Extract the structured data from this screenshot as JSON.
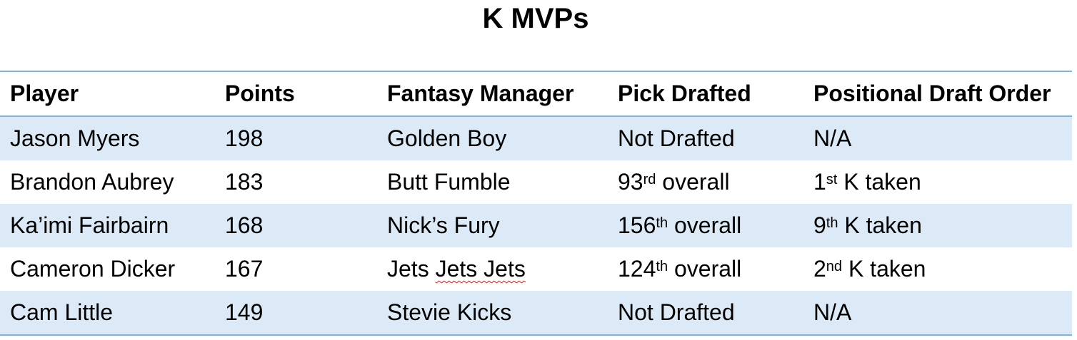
{
  "title": "K MVPs",
  "table": {
    "headers": [
      "Player",
      "Points",
      "Fantasy Manager",
      "Pick Drafted",
      "Positional Draft Order"
    ],
    "rows": [
      {
        "player": "Jason Myers",
        "points": "198",
        "manager_a": "Golden Boy",
        "manager_b": "",
        "pick_num": "Not Drafted",
        "pick_sup": "",
        "pick_rest": "",
        "pos_num": "N/A",
        "pos_sup": "",
        "pos_rest": ""
      },
      {
        "player": "Brandon Aubrey",
        "points": "183",
        "manager_a": "Butt Fumble",
        "manager_b": "",
        "pick_num": "93",
        "pick_sup": "rd",
        "pick_rest": " overall",
        "pos_num": "1",
        "pos_sup": "st",
        "pos_rest": " K taken"
      },
      {
        "player": "Ka’imi Fairbairn",
        "points": "168",
        "manager_a": "Nick’s Fury",
        "manager_b": "",
        "pick_num": "156",
        "pick_sup": "th",
        "pick_rest": " overall",
        "pos_num": "9",
        "pos_sup": "th",
        "pos_rest": " K taken"
      },
      {
        "player": "Cameron Dicker",
        "points": "167",
        "manager_a": "Jets ",
        "manager_b": "Jets Jets",
        "pick_num": "124",
        "pick_sup": "th",
        "pick_rest": " overall",
        "pos_num": "2",
        "pos_sup": "nd",
        "pos_rest": " K taken"
      },
      {
        "player": "Cam Little",
        "points": "149",
        "manager_a": "Stevie Kicks",
        "manager_b": "",
        "pick_num": "Not Drafted",
        "pick_sup": "",
        "pick_rest": "",
        "pos_num": "N/A",
        "pos_sup": "",
        "pos_rest": ""
      }
    ]
  },
  "colors": {
    "border": "#7fb5dd",
    "row_shade": "#dbeaf6",
    "spellcheck_underline": "#d02020"
  }
}
